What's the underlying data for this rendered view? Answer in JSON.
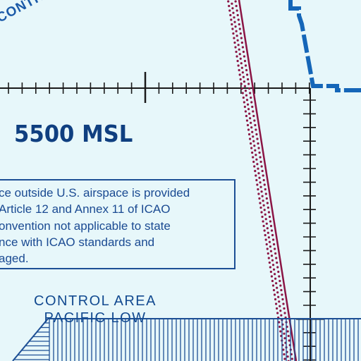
{
  "map": {
    "control_label_fragment": "CONTROL",
    "altitude_label": "5500 MSL",
    "notice_lines": [
      "ce outside U.S. airspace is provided",
      "Article 12 and Annex 11 of ICAO",
      "onvention not applicable to state",
      "nce with ICAO standards and",
      "aged."
    ],
    "area_name_line1": "CONTROL AREA",
    "area_name_line2": "PACIFIC LOW",
    "colors": {
      "background": "#e7f7fa",
      "chart_blue": "#1d4f95",
      "boundary_blue": "#1566b8",
      "restricted_maroon": "#8b1545",
      "tick_black": "#1a1a1a"
    }
  }
}
